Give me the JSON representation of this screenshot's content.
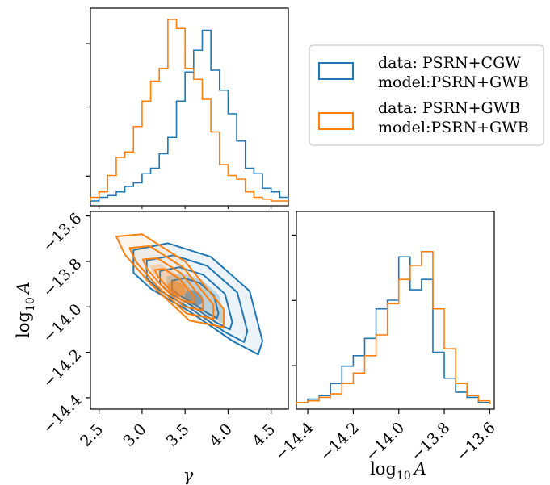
{
  "chart_data": {
    "type": "corner",
    "params": [
      "γ",
      "log10 A"
    ],
    "colors": {
      "cgw": "#1f77b4",
      "gwb": "#ff7f0e"
    },
    "legend": {
      "placement": "top-right",
      "entries": [
        {
          "line1": "data: PSRN+CGW",
          "line2": "model:PSRN+GWB",
          "color": "#1f77b4"
        },
        {
          "line1": "data: PSRN+GWB",
          "line2": "model:PSRN+GWB",
          "color": "#ff7f0e"
        }
      ]
    },
    "gamma_axis": {
      "label": "γ",
      "ticks": [
        "2.5",
        "3.0",
        "3.5",
        "4.0",
        "4.5"
      ],
      "range": [
        2.4,
        4.7
      ]
    },
    "logA_axis": {
      "label_main": "log",
      "label_sub": "10",
      "label_var": "A",
      "ticks": [
        "−13.6",
        "−13.8",
        "−14.0",
        "−14.2",
        "−14.4"
      ],
      "tick_values": [
        -13.6,
        -13.8,
        -14.0,
        -14.2,
        -14.4
      ],
      "range": [
        -14.45,
        -13.58
      ]
    },
    "hist_gamma": {
      "edges": [
        2.4,
        2.5,
        2.6,
        2.7,
        2.8,
        2.9,
        3.0,
        3.1,
        3.2,
        3.3,
        3.4,
        3.5,
        3.6,
        3.7,
        3.8,
        3.9,
        4.0,
        4.1,
        4.2,
        4.3,
        4.4,
        4.5,
        4.6,
        4.7
      ],
      "series": [
        {
          "name": "data: PSRN+CGW model:PSRN+GWB",
          "color": "#1f77b4",
          "counts": [
            0,
            0.02,
            0.03,
            0.05,
            0.08,
            0.1,
            0.15,
            0.18,
            0.26,
            0.35,
            0.55,
            0.71,
            0.83,
            0.94,
            0.72,
            0.61,
            0.48,
            0.33,
            0.18,
            0.15,
            0.07,
            0.05,
            0.02
          ]
        },
        {
          "name": "data: PSRN+GWB model:PSRN+GWB",
          "color": "#ff7f0e",
          "counts": [
            0.02,
            0.05,
            0.14,
            0.24,
            0.27,
            0.41,
            0.55,
            0.66,
            0.73,
            1.0,
            0.95,
            0.73,
            0.67,
            0.56,
            0.38,
            0.2,
            0.14,
            0.12,
            0.05,
            0.02,
            0.01,
            0,
            0
          ]
        }
      ]
    },
    "hist_logA": {
      "edges": [
        -14.45,
        -14.4,
        -14.35,
        -14.3,
        -14.25,
        -14.2,
        -14.15,
        -14.1,
        -14.05,
        -14.0,
        -13.95,
        -13.9,
        -13.85,
        -13.8,
        -13.75,
        -13.7,
        -13.65,
        -13.6
      ],
      "series": [
        {
          "name": "data: PSRN+CGW model:PSRN+GWB",
          "color": "#1f77b4",
          "counts": [
            0.01,
            0.03,
            0.05,
            0.12,
            0.22,
            0.28,
            0.38,
            0.55,
            0.6,
            0.85,
            0.66,
            0.72,
            0.3,
            0.15,
            0.07,
            0.04,
            0.01
          ]
        },
        {
          "name": "data: PSRN+GWB model:PSRN+GWB",
          "color": "#ff7f0e",
          "counts": [
            0.01,
            0.02,
            0.04,
            0.06,
            0.12,
            0.18,
            0.28,
            0.4,
            0.58,
            0.72,
            0.8,
            0.88,
            0.55,
            0.32,
            0.12,
            0.05,
            0.02
          ]
        }
      ]
    },
    "posterior_2d": {
      "x": "γ",
      "y": "log10 A",
      "series": [
        {
          "name": "data: PSRN+CGW model:PSRN+GWB",
          "color": "#1f77b4",
          "center": [
            3.6,
            -13.96
          ],
          "outer": [
            [
              2.9,
              -13.75
            ],
            [
              3.3,
              -13.72
            ],
            [
              3.8,
              -13.78
            ],
            [
              4.25,
              -13.93
            ],
            [
              4.4,
              -14.15
            ],
            [
              4.35,
              -14.21
            ],
            [
              4.05,
              -14.15
            ],
            [
              3.55,
              -14.02
            ],
            [
              3.1,
              -13.92
            ],
            [
              2.9,
              -13.85
            ]
          ]
        },
        {
          "name": "data: PSRN+GWB model:PSRN+GWB",
          "color": "#ff7f0e",
          "center": [
            3.4,
            -13.92
          ],
          "outer": [
            [
              2.7,
              -13.69
            ],
            [
              3.0,
              -13.68
            ],
            [
              3.5,
              -13.8
            ],
            [
              3.95,
              -14.01
            ],
            [
              3.95,
              -14.09
            ],
            [
              3.55,
              -14.06
            ],
            [
              3.1,
              -13.9
            ],
            [
              2.8,
              -13.77
            ]
          ]
        }
      ]
    }
  }
}
